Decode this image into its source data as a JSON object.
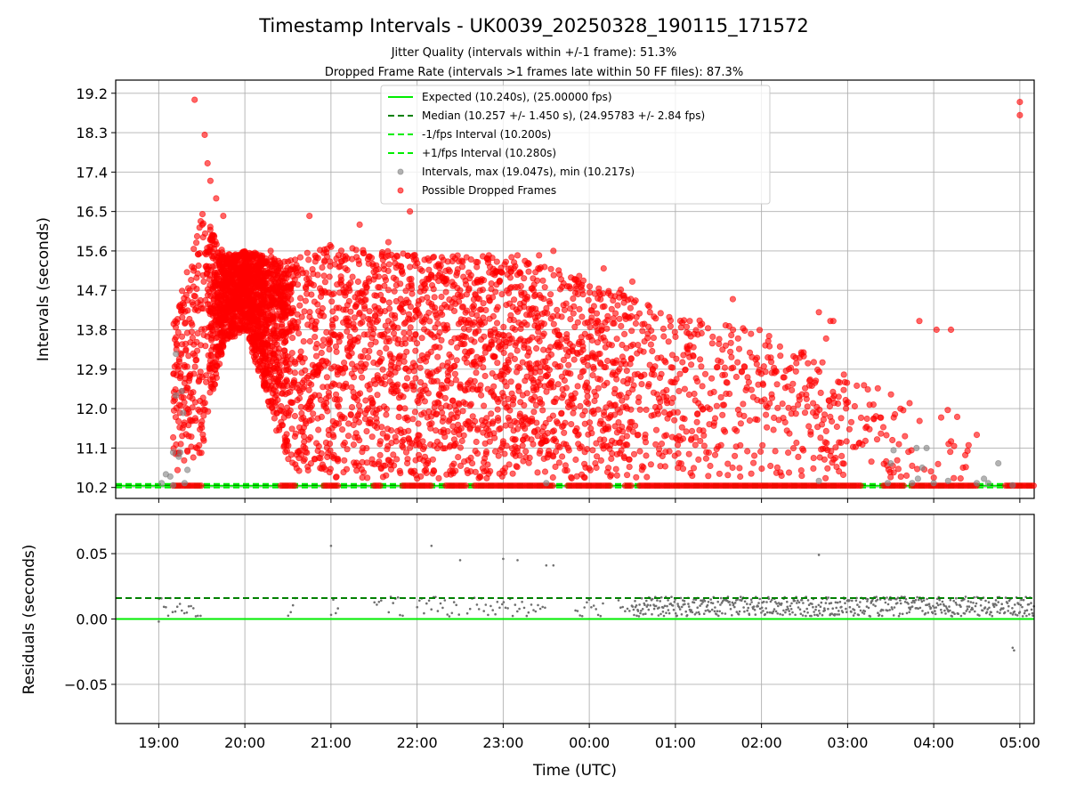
{
  "title": "Timestamp Intervals - UK0039_20250328_190115_171572",
  "subtitle_lines": [
    "Jitter Quality (intervals within +/-1 frame): 51.3%",
    "Dropped Frame Rate (intervals >1 frames late within 50 FF files): 87.3%"
  ],
  "colors": {
    "expected": "#00ee00",
    "median": "#008000",
    "fps_band": "#00ee00",
    "intervals": "#808080",
    "dropped": "#ff0000",
    "residuals": "#6e6e6e"
  },
  "chart_data": [
    {
      "type": "scatter",
      "panel": "top",
      "ylabel": "Intervals (seconds)",
      "ylim": [
        9.95,
        19.5
      ],
      "yticks": [
        "10.2",
        "11.1",
        "12.0",
        "12.9",
        "13.8",
        "14.7",
        "15.6",
        "16.5",
        "17.4",
        "18.3",
        "19.2"
      ],
      "grid": true,
      "legend_placement": "top-center",
      "legend": [
        "Expected (10.240s), (25.00000 fps)",
        "Median (10.257 +/- 1.450 s), (24.95783 +/- 2.84 fps)",
        "-1/fps Interval (10.200s)",
        "+1/fps Interval (10.280s)",
        "Intervals, max (19.047s), min (10.217s)",
        "Possible Dropped Frames"
      ],
      "reference_lines": [
        {
          "name": "Expected",
          "value": 10.24
        },
        {
          "name": "Median",
          "value": 10.257
        },
        {
          "name": "-1/fps Interval",
          "value": 10.2
        },
        {
          "name": "+1/fps Interval",
          "value": 10.28
        }
      ],
      "series": [
        {
          "name": "Intervals",
          "points": [
            [
              "19:02",
              10.3
            ],
            [
              "19:05",
              10.5
            ],
            [
              "19:08",
              10.45
            ],
            [
              "19:10",
              10.25
            ],
            [
              "19:10",
              11.0
            ],
            [
              "19:12",
              12.3
            ],
            [
              "19:12",
              13.25
            ],
            [
              "19:14",
              10.9
            ],
            [
              "19:15",
              11.0
            ],
            [
              "19:16",
              12.4
            ],
            [
              "19:17",
              11.9
            ],
            [
              "19:18",
              10.3
            ],
            [
              "19:20",
              10.6
            ],
            [
              "23:30",
              10.3
            ],
            [
              "02:40",
              10.35
            ],
            [
              "03:28",
              10.3
            ],
            [
              "03:30",
              10.75
            ],
            [
              "03:32",
              11.05
            ],
            [
              "03:45",
              10.3
            ],
            [
              "03:48",
              11.1
            ],
            [
              "03:49",
              10.4
            ],
            [
              "03:52",
              10.65
            ],
            [
              "03:55",
              11.1
            ],
            [
              "04:00",
              10.3
            ],
            [
              "04:10",
              10.35
            ],
            [
              "04:30",
              10.3
            ],
            [
              "04:35",
              10.4
            ],
            [
              "04:38",
              10.3
            ],
            [
              "04:45",
              10.75
            ],
            [
              "04:55",
              10.25
            ]
          ]
        },
        {
          "name": "Possible Dropped Frames",
          "baseline_value": 10.24,
          "baseline_ranges": [
            [
              "19:10",
              "19:30"
            ],
            [
              "20:25",
              "20:35"
            ],
            [
              "20:55",
              "21:05"
            ],
            [
              "21:30",
              "21:35"
            ],
            [
              "21:50",
              "22:10"
            ],
            [
              "22:20",
              "22:35"
            ],
            [
              "22:40",
              "23:35"
            ],
            [
              "23:45",
              "00:15"
            ],
            [
              "00:25",
              "00:30"
            ],
            [
              "00:35",
              "03:10"
            ],
            [
              "03:25",
              "03:40"
            ],
            [
              "03:45",
              "04:30"
            ],
            [
              "04:50",
              "05:10"
            ]
          ],
          "peaks": [
            [
              "19:25",
              19.05
            ],
            [
              "19:32",
              18.25
            ],
            [
              "19:34",
              17.6
            ],
            [
              "19:36",
              17.2
            ],
            [
              "19:40",
              16.8
            ],
            [
              "19:45",
              16.4
            ],
            [
              "20:18",
              15.6
            ],
            [
              "20:35",
              15.4
            ],
            [
              "20:45",
              16.4
            ],
            [
              "21:10",
              15.2
            ],
            [
              "21:20",
              16.2
            ],
            [
              "21:40",
              15.8
            ],
            [
              "21:55",
              16.5
            ],
            [
              "22:15",
              15.3
            ],
            [
              "22:25",
              14.8
            ],
            [
              "22:50",
              15.5
            ],
            [
              "23:10",
              15.5
            ],
            [
              "23:25",
              15.5
            ],
            [
              "23:35",
              15.6
            ],
            [
              "23:55",
              14.7
            ],
            [
              "00:10",
              15.2
            ],
            [
              "00:30",
              14.9
            ],
            [
              "01:10",
              14.0
            ],
            [
              "01:35",
              13.9
            ],
            [
              "01:40",
              14.5
            ],
            [
              "02:40",
              14.2
            ],
            [
              "02:45",
              13.6
            ],
            [
              "02:48",
              14.0
            ],
            [
              "02:50",
              14.0
            ],
            [
              "03:50",
              14.0
            ],
            [
              "04:02",
              13.8
            ],
            [
              "04:12",
              13.8
            ],
            [
              "04:30",
              11.4
            ],
            [
              "05:00",
              19.0
            ],
            [
              "05:00",
              18.7
            ]
          ],
          "spread_by_hour": [
            {
              "t": "19:10",
              "low": 10.5,
              "high": 14.0
            },
            {
              "t": "19:30",
              "low": 11.0,
              "high": 16.5
            },
            {
              "t": "19:45",
              "low": 13.5,
              "high": 15.5
            },
            {
              "t": "20:00",
              "low": 13.8,
              "high": 15.6
            },
            {
              "t": "20:30",
              "low": 10.6,
              "high": 15.4
            },
            {
              "t": "21:00",
              "low": 10.4,
              "high": 15.8
            },
            {
              "t": "22:00",
              "low": 10.4,
              "high": 15.5
            },
            {
              "t": "23:00",
              "low": 10.4,
              "high": 15.5
            },
            {
              "t": "00:00",
              "low": 10.4,
              "high": 15.0
            },
            {
              "t": "01:00",
              "low": 10.4,
              "high": 14.2
            },
            {
              "t": "02:00",
              "low": 10.4,
              "high": 13.8
            },
            {
              "t": "03:00",
              "low": 10.4,
              "high": 12.8
            },
            {
              "t": "03:40",
              "low": 10.4,
              "high": 12.2
            },
            {
              "t": "04:00",
              "low": 10.4,
              "high": 12.2
            },
            {
              "t": "04:30",
              "low": 10.4,
              "high": 11.5
            }
          ]
        }
      ]
    },
    {
      "type": "scatter",
      "panel": "bottom",
      "xlabel": "Time (UTC)",
      "ylabel": "Residuals (seconds)",
      "ylim": [
        -0.08,
        0.08
      ],
      "yticks": [
        "0.05",
        "0.00",
        "−0.05"
      ],
      "xticks": [
        "19:00",
        "20:00",
        "21:00",
        "22:00",
        "23:00",
        "00:00",
        "01:00",
        "02:00",
        "03:00",
        "04:00",
        "05:00"
      ],
      "xlim": [
        "18:30",
        "05:10"
      ],
      "grid": true,
      "reference_lines": [
        {
          "name": "Expected",
          "value": 0.0
        },
        {
          "name": "Median",
          "value": 0.016
        }
      ],
      "series": [
        {
          "name": "Residuals",
          "dense_ranges": [
            [
              "19:00",
              "19:30"
            ],
            [
              "20:30",
              "20:35"
            ],
            [
              "21:00",
              "21:05"
            ],
            [
              "21:30",
              "21:35"
            ],
            [
              "21:40",
              "21:50"
            ],
            [
              "22:00",
              "22:30"
            ],
            [
              "22:35",
              "23:00"
            ],
            [
              "23:00",
              "23:30"
            ],
            [
              "23:50",
              "00:10"
            ],
            [
              "00:20",
              "00:30"
            ],
            [
              "00:30",
              "05:10"
            ]
          ],
          "outliers": [
            [
              "19:00",
              -0.002
            ],
            [
              "21:00",
              0.056
            ],
            [
              "22:10",
              0.056
            ],
            [
              "22:30",
              0.045
            ],
            [
              "23:00",
              0.046
            ],
            [
              "23:10",
              0.045
            ],
            [
              "23:30",
              0.041
            ],
            [
              "23:35",
              0.041
            ],
            [
              "02:40",
              0.049
            ],
            [
              "04:55",
              -0.022
            ],
            [
              "04:56",
              -0.024
            ]
          ]
        }
      ]
    }
  ]
}
